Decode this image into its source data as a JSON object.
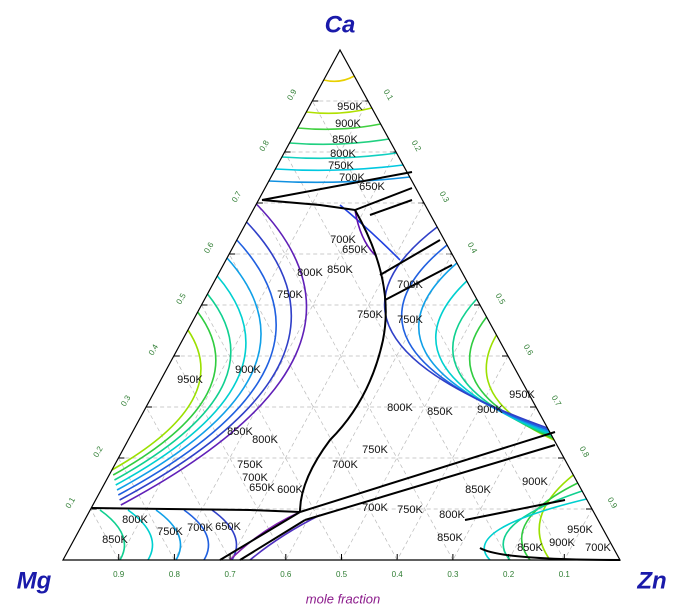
{
  "chart_data": {
    "type": "ternary",
    "corners": [
      "Ca",
      "Mg",
      "Zn"
    ],
    "axis_label": "mole fraction",
    "ticks": [
      0.1,
      0.2,
      0.3,
      0.4,
      0.5,
      0.6,
      0.7,
      0.8,
      0.9
    ],
    "grid": true,
    "isotherm_labels": [
      "950K",
      "900K",
      "850K",
      "800K",
      "750K",
      "700K",
      "650K",
      "700K",
      "650K",
      "800K",
      "750K",
      "850K",
      "750K",
      "700K",
      "750K",
      "950K",
      "900K",
      "850K",
      "800K",
      "750K",
      "700K",
      "650K",
      "600K",
      "800K",
      "850K",
      "900K",
      "950K",
      "750K",
      "700K",
      "700K",
      "750K",
      "800K",
      "850K",
      "850K",
      "900K",
      "950K",
      "850K",
      "900K",
      "700K",
      "800K",
      "750K",
      "700K",
      "650K",
      "850K"
    ]
  }
}
